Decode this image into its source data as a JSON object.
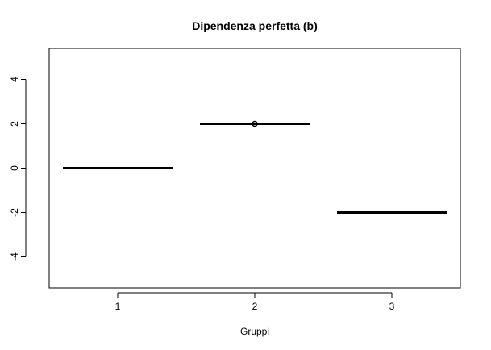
{
  "chart_data": {
    "type": "boxplot",
    "title": "Dipendenza perfetta (b)",
    "xlabel": "Gruppi",
    "ylabel": "",
    "categories": [
      "1",
      "2",
      "3"
    ],
    "ylim": [
      -5.4,
      5.4
    ],
    "yticks": [
      -4,
      -2,
      0,
      2,
      4
    ],
    "ytick_labels": [
      "-4",
      "-2",
      "0",
      "2",
      "4"
    ],
    "series": [
      {
        "group": "1",
        "median": 0,
        "outliers": []
      },
      {
        "group": "2",
        "median": 2,
        "outliers": [
          2
        ]
      },
      {
        "group": "3",
        "median": -2,
        "outliers": []
      }
    ],
    "grid": false,
    "legend": "none",
    "colors": {
      "line": "#000000",
      "background": "#ffffff"
    }
  }
}
